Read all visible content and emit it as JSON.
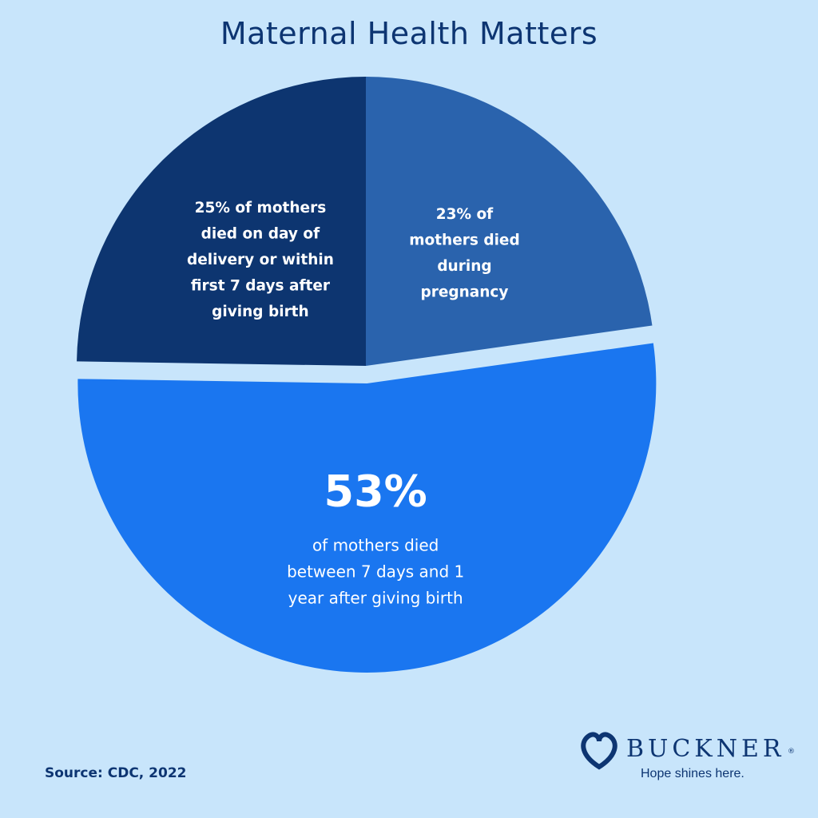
{
  "title": "Maternal Health Matters",
  "source": "Source:  CDC, 2022",
  "logo": {
    "wordmark": "BUCKNER",
    "registered": "®",
    "tagline": "Hope shines here.",
    "icon": "buckner-heart-knot-icon"
  },
  "chart_data": {
    "type": "pie",
    "title": "Maternal Health Matters",
    "slices": [
      {
        "category": "during pregnancy",
        "value": 23,
        "label_lines": [
          "23% of",
          "mothers died",
          "during",
          "pregnancy"
        ],
        "color": "#2a63ad"
      },
      {
        "category": "between 7 days and 1 year after giving birth",
        "value": 53,
        "exploded": true,
        "big_label": "53%",
        "label_lines": [
          "of mothers died",
          "between 7 days and 1",
          "year after giving birth"
        ],
        "color": "#1a76f0"
      },
      {
        "category": "day of delivery or within first 7 days after giving birth",
        "value": 25,
        "label_lines": [
          "25% of mothers",
          "died on day of",
          "delivery or within",
          "first 7 days after",
          "giving birth"
        ],
        "color": "#0d3570"
      }
    ],
    "legend": "none",
    "grid": false
  },
  "colors": {
    "background": "#c8e5fb",
    "title": "#0d3572",
    "gap": "#cfddee"
  }
}
